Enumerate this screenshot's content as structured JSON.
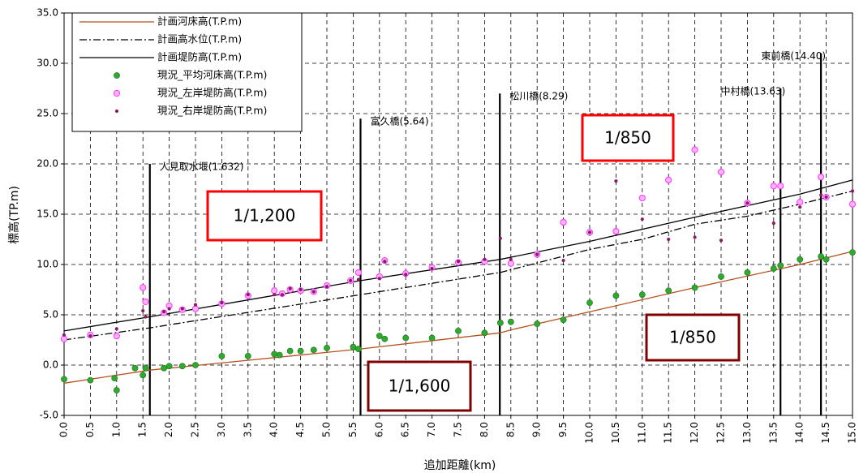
{
  "chart_data": {
    "type": "line",
    "title": "",
    "xlabel": "追加距離(km)",
    "ylabel": "標高(TP.m)",
    "xlim": [
      0,
      15
    ],
    "ylim": [
      -5,
      35
    ],
    "x_ticks": [
      "0.0",
      "0.5",
      "1.0",
      "1.5",
      "2.0",
      "2.5",
      "3.0",
      "3.5",
      "4.0",
      "4.5",
      "5.0",
      "5.5",
      "6.0",
      "6.5",
      "7.0",
      "7.5",
      "8.0",
      "8.5",
      "9.0",
      "9.5",
      "10.0",
      "10.5",
      "11.0",
      "11.5",
      "12.0",
      "12.5",
      "13.0",
      "13.5",
      "14.0",
      "14.5",
      "15.0"
    ],
    "y_ticks": [
      "-5.0",
      "0.0",
      "5.0",
      "10.0",
      "15.0",
      "20.0",
      "25.0",
      "30.0",
      "35.0"
    ],
    "grid": true,
    "legend_position": "top-left",
    "series": [
      {
        "name": "計画河床高(T.P.m)",
        "kind": "line",
        "style": "solid",
        "color": "#b5501f",
        "x": [
          0,
          1.632,
          5.64,
          8.29,
          8.5,
          10,
          12,
          14,
          15
        ],
        "y": [
          -1.8,
          -0.5,
          1.6,
          3.2,
          3.5,
          5.3,
          7.7,
          10.0,
          11.3
        ]
      },
      {
        "name": "計画高水位(T.P.m)",
        "kind": "line",
        "style": "dashdot",
        "color": "#000000",
        "x": [
          0,
          1.632,
          5.64,
          8.29,
          10,
          11,
          12,
          13,
          14,
          15
        ],
        "y": [
          2.5,
          3.7,
          7.0,
          9.2,
          11.5,
          12.5,
          14.0,
          14.8,
          16.0,
          17.3
        ]
      },
      {
        "name": "計画堤防高(T.P.m)",
        "kind": "line",
        "style": "solid",
        "color": "#000000",
        "x": [
          0,
          1.632,
          5.64,
          8.29,
          10,
          12,
          14,
          15
        ],
        "y": [
          3.4,
          4.8,
          8.4,
          10.5,
          12.3,
          14.7,
          17.0,
          18.4
        ]
      },
      {
        "name": "現況_平均河床高(T.P.m)",
        "kind": "scatter",
        "color": "#2a9d2a",
        "x": [
          0,
          0.5,
          0.96,
          1.0,
          1.35,
          1.5,
          1.55,
          1.9,
          2.0,
          2.25,
          2.5,
          3.0,
          3.5,
          4.0,
          4.1,
          4.3,
          4.5,
          4.75,
          5.0,
          5.5,
          5.6,
          6.0,
          6.1,
          6.5,
          7.0,
          7.5,
          8.0,
          8.3,
          8.5,
          9.0,
          9.5,
          10.0,
          10.5,
          11.0,
          11.5,
          12.0,
          12.5,
          13.0,
          13.5,
          13.63,
          14.0,
          14.4,
          14.5,
          15.0
        ],
        "y": [
          -1.4,
          -1.5,
          -1.3,
          -2.5,
          -0.3,
          -1.0,
          -0.3,
          -0.3,
          -0.1,
          -0.1,
          0.0,
          0.9,
          0.9,
          1.1,
          1.0,
          1.4,
          1.4,
          1.5,
          1.7,
          1.8,
          1.6,
          2.9,
          2.6,
          2.7,
          2.7,
          3.4,
          3.2,
          4.2,
          4.3,
          4.1,
          4.5,
          6.2,
          6.9,
          7.0,
          7.4,
          7.7,
          8.8,
          9.2,
          9.6,
          9.9,
          10.5,
          10.8,
          10.5,
          11.2
        ]
      },
      {
        "name": "現況_左岸堤防高(T.P.m)",
        "kind": "scatter",
        "color": "#ff66ff",
        "x": [
          0,
          0.5,
          1.0,
          1.5,
          1.55,
          1.9,
          2.0,
          2.25,
          2.5,
          3.0,
          3.5,
          4.0,
          4.15,
          4.3,
          4.5,
          4.75,
          5.0,
          5.45,
          5.6,
          6.0,
          6.1,
          6.5,
          7.0,
          7.5,
          8.0,
          8.5,
          9.0,
          9.5,
          10.0,
          10.5,
          11.0,
          11.5,
          12.0,
          12.5,
          13.0,
          13.5,
          13.63,
          14.0,
          14.4,
          14.5,
          15.0
        ],
        "y": [
          2.6,
          3.0,
          2.9,
          7.7,
          6.3,
          5.2,
          5.9,
          5.5,
          5.6,
          6.1,
          6.9,
          7.4,
          7.1,
          7.5,
          7.4,
          7.3,
          7.9,
          8.4,
          9.2,
          8.8,
          10.4,
          9.1,
          9.7,
          10.2,
          10.3,
          10.1,
          11.0,
          14.2,
          13.2,
          13.3,
          16.6,
          18.4,
          21.4,
          19.2,
          16.1,
          17.8,
          17.8,
          16.2,
          18.7,
          16.7,
          16.0
        ]
      },
      {
        "name": "現況_右岸堤防高(T.P.m)",
        "kind": "scatter",
        "color": "#8b1a6b",
        "x": [
          0,
          0.5,
          1.0,
          1.5,
          1.55,
          1.9,
          2.0,
          2.25,
          2.5,
          3.0,
          3.5,
          4.0,
          4.15,
          4.3,
          4.5,
          4.75,
          5.0,
          5.45,
          5.6,
          6.0,
          6.1,
          6.5,
          7.0,
          7.5,
          8.0,
          8.3,
          8.5,
          9.0,
          9.5,
          10.0,
          10.5,
          11.0,
          11.5,
          12.0,
          12.5,
          13.0,
          13.5,
          14.0,
          14.4,
          14.5,
          15.0
        ],
        "y": [
          3.0,
          2.9,
          3.6,
          5.4,
          4.8,
          5.3,
          5.6,
          5.6,
          6.0,
          6.2,
          7.0,
          7.0,
          7.0,
          7.6,
          7.5,
          7.3,
          7.8,
          8.4,
          8.5,
          8.6,
          10.3,
          9.0,
          9.6,
          10.3,
          10.5,
          12.6,
          10.5,
          11.0,
          10.4,
          13.2,
          18.3,
          14.5,
          12.5,
          12.7,
          12.4,
          16.1,
          14.1,
          15.7,
          16.9,
          16.7,
          17.3
        ]
      }
    ],
    "bridges": [
      {
        "label": "人見取水堰(1.632)",
        "x": 1.632,
        "top": 20.0
      },
      {
        "label": "富久橋(5.64)",
        "x": 5.64,
        "top": 24.5
      },
      {
        "label": "松川橋(8.29)",
        "x": 8.29,
        "top": 27.0
      },
      {
        "label": "中村橋(13.63)",
        "x": 13.63,
        "top": 27.5
      },
      {
        "label": "東前橋(14.40)",
        "x": 14.4,
        "top": 31.0
      }
    ],
    "annotations": [
      {
        "text": "1/1,200",
        "color": "#ff0000"
      },
      {
        "text": "1/850",
        "color": "#ff0000"
      },
      {
        "text": "1/1,600",
        "color": "#7f0000"
      },
      {
        "text": "1/850",
        "color": "#7f0000"
      }
    ]
  }
}
